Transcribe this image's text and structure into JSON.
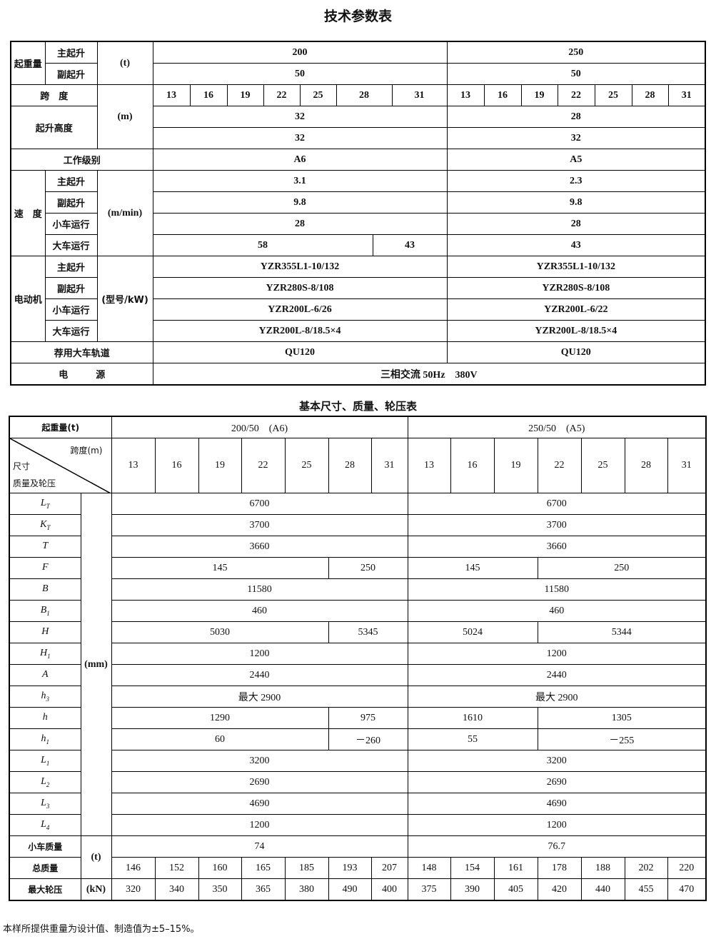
{
  "title1": "技术参数表",
  "t1": {
    "capacity": {
      "label": "起重量",
      "main": "主起升",
      "aux": "副起升",
      "unit": "(t)",
      "main_values": [
        "200",
        "250"
      ],
      "aux_values": [
        "50",
        "50"
      ]
    },
    "span": {
      "label": "跨　度",
      "unit": "(m)",
      "left": [
        "13",
        "16",
        "19",
        "22",
        "25",
        "28",
        "31"
      ],
      "right": [
        "13",
        "16",
        "19",
        "22",
        "25",
        "28",
        "31"
      ]
    },
    "lift_height": {
      "label": "起升高度",
      "main_values": [
        "32",
        "28"
      ],
      "aux_values": [
        "32",
        "32"
      ]
    },
    "duty": {
      "label": "工作级别",
      "values": [
        "A6",
        "A5"
      ]
    },
    "speed": {
      "label": "速　度",
      "unit": "(m/min)",
      "rows": [
        {
          "label": "主起升",
          "values": [
            "3.1",
            "2.3"
          ]
        },
        {
          "label": "副起升",
          "values": [
            "9.8",
            "9.8"
          ]
        },
        {
          "label": "小车运行",
          "values": [
            "28",
            "28"
          ]
        },
        {
          "label": "大车运行",
          "values": [
            "58",
            "43",
            "43"
          ]
        }
      ]
    },
    "motor": {
      "label": "电动机",
      "unit": "(型号/kW)",
      "rows": [
        {
          "label": "主起升",
          "values": [
            "YZR355L1-10/132",
            "YZR355L1-10/132"
          ]
        },
        {
          "label": "副起升",
          "values": [
            "YZR280S-8/108",
            "YZR280S-8/108"
          ]
        },
        {
          "label": "小车运行",
          "values": [
            "YZR200L-6/26",
            "YZR200L-6/22"
          ]
        },
        {
          "label": "大车运行",
          "values": [
            "YZR200L-8/18.5×4",
            "YZR200L-8/18.5×4"
          ]
        }
      ]
    },
    "rail": {
      "label": "荐用大车轨道",
      "values": [
        "QU120",
        "QU120"
      ]
    },
    "power": {
      "label": "电　　　源",
      "value": "三相交流 50Hz　380V"
    }
  },
  "title2": "基本尺寸、质量、轮压表",
  "t2": {
    "capacity_label": "起重量(t)",
    "groups": [
      "200/50　(A6)",
      "250/50　(A5)"
    ],
    "corner": {
      "span": "跨度(m)",
      "size": "尺寸",
      "mass": "质量及轮压"
    },
    "spans_left": [
      "13",
      "16",
      "19",
      "22",
      "25",
      "28",
      "31"
    ],
    "spans_right": [
      "13",
      "16",
      "19",
      "22",
      "25",
      "28",
      "31"
    ],
    "mm_unit": "(mm)",
    "rows": [
      {
        "sym": "L",
        "sub": "T",
        "values": [
          "6700",
          "6700"
        ]
      },
      {
        "sym": "K",
        "sub": "T",
        "values": [
          "3700",
          "3700"
        ]
      },
      {
        "sym": "T",
        "sub": "",
        "values": [
          "3660",
          "3660"
        ]
      },
      {
        "sym": "F",
        "sub": "",
        "values": [
          "145",
          "250",
          "145",
          "250"
        ]
      },
      {
        "sym": "B",
        "sub": "",
        "values": [
          "11580",
          "11580"
        ]
      },
      {
        "sym": "B",
        "sub": "1",
        "values": [
          "460",
          "460"
        ]
      },
      {
        "sym": "H",
        "sub": "",
        "values": [
          "5030",
          "5345",
          "5024",
          "5344"
        ]
      },
      {
        "sym": "H",
        "sub": "1",
        "values": [
          "1200",
          "1200"
        ]
      },
      {
        "sym": "A",
        "sub": "",
        "values": [
          "2440",
          "2440"
        ]
      },
      {
        "sym": "h",
        "sub": "3",
        "values": [
          "最大 2900",
          "最大 2900"
        ]
      },
      {
        "sym": "h",
        "sub": "",
        "values": [
          "1290",
          "975",
          "1610",
          "1305"
        ]
      },
      {
        "sym": "h",
        "sub": "1",
        "values": [
          "60",
          "－260",
          "55",
          "－255"
        ]
      },
      {
        "sym": "L",
        "sub": "1",
        "values": [
          "3200",
          "3200"
        ]
      },
      {
        "sym": "L",
        "sub": "2",
        "values": [
          "2690",
          "2690"
        ]
      },
      {
        "sym": "L",
        "sub": "3",
        "values": [
          "4690",
          "4690"
        ]
      },
      {
        "sym": "L",
        "sub": "4",
        "values": [
          "1200",
          "1200"
        ]
      }
    ],
    "trolley_mass": {
      "label": "小车质量",
      "values": [
        "74",
        "76.7"
      ]
    },
    "t_unit": "(t)",
    "total_mass": {
      "label": "总质量",
      "values": [
        "146",
        "152",
        "160",
        "165",
        "185",
        "193",
        "207",
        "148",
        "154",
        "161",
        "178",
        "188",
        "202",
        "220"
      ]
    },
    "wheel_load": {
      "label": "最大轮压",
      "unit": "(kN)",
      "values": [
        "320",
        "340",
        "350",
        "365",
        "380",
        "490",
        "400",
        "375",
        "390",
        "405",
        "420",
        "440",
        "455",
        "470"
      ]
    }
  },
  "note": "本样所提供重量为设计值、制造值为±5–15%。"
}
